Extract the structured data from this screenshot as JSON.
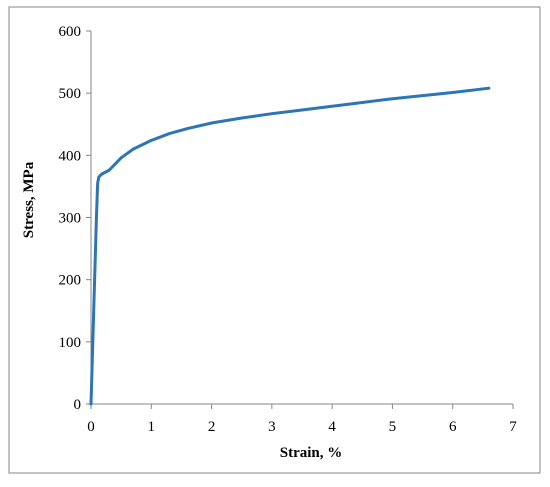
{
  "chart_data": {
    "type": "line",
    "xlabel": "Strain, %",
    "ylabel": "Stress, MPa",
    "xlim": [
      0,
      7
    ],
    "ylim": [
      0,
      600
    ],
    "x_ticks": [
      "0",
      "1",
      "2",
      "3",
      "4",
      "5",
      "6",
      "7"
    ],
    "y_ticks": [
      "0",
      "100",
      "200",
      "300",
      "400",
      "500",
      "600"
    ],
    "grid": false,
    "legend": "none",
    "series": [
      {
        "color": "#2E75B6",
        "points": [
          [
            0.0,
            0
          ],
          [
            0.03,
            100
          ],
          [
            0.06,
            200
          ],
          [
            0.09,
            300
          ],
          [
            0.11,
            355
          ],
          [
            0.13,
            365
          ],
          [
            0.18,
            370
          ],
          [
            0.3,
            376
          ],
          [
            0.4,
            386
          ],
          [
            0.5,
            396
          ],
          [
            0.7,
            410
          ],
          [
            1.0,
            424
          ],
          [
            1.3,
            435
          ],
          [
            1.6,
            443
          ],
          [
            2.0,
            452
          ],
          [
            2.5,
            460
          ],
          [
            3.0,
            467
          ],
          [
            3.5,
            473
          ],
          [
            4.0,
            479
          ],
          [
            4.5,
            485
          ],
          [
            5.0,
            491
          ],
          [
            5.5,
            496
          ],
          [
            6.0,
            501
          ],
          [
            6.6,
            508
          ]
        ]
      }
    ]
  }
}
